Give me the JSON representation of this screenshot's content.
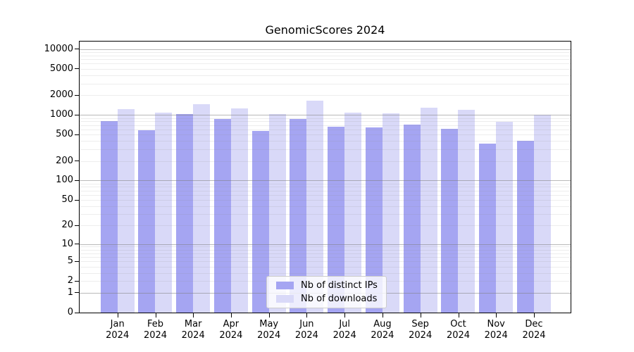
{
  "chart_data": {
    "type": "bar",
    "title": "GenomicScores 2024",
    "categories": [
      "Jan\n2024",
      "Feb\n2024",
      "Mar\n2024",
      "Apr\n2024",
      "May\n2024",
      "Jun\n2024",
      "Jul\n2024",
      "Aug\n2024",
      "Sep\n2024",
      "Oct\n2024",
      "Nov\n2024",
      "Dec\n2024"
    ],
    "series": [
      {
        "name": "Nb of distinct IPs",
        "color": "#a5a5f2",
        "values": [
          810,
          580,
          1040,
          870,
          570,
          870,
          655,
          650,
          720,
          620,
          365,
          405
        ]
      },
      {
        "name": "Nb of downloads",
        "color": "#d9d9f8",
        "values": [
          1230,
          1070,
          1470,
          1260,
          1040,
          1650,
          1080,
          1045,
          1300,
          1180,
          795,
          1000
        ]
      }
    ],
    "yscale": "log1p",
    "yticks": [
      0,
      1,
      2,
      5,
      10,
      20,
      50,
      100,
      200,
      500,
      1000,
      2000,
      5000,
      10000
    ],
    "ylim": [
      0,
      13000
    ],
    "xlabel": "",
    "ylabel": "",
    "grid": "horizontal log minor+major, drawn over bars",
    "legend_position": "inside lower-center"
  },
  "colors": {
    "bar_distinct_ips": "#a5a5f2",
    "bar_downloads": "#d9d9f8",
    "axis": "#000000",
    "grid_major": "#7f7f7f",
    "grid_minor": "#e4e4e4"
  }
}
